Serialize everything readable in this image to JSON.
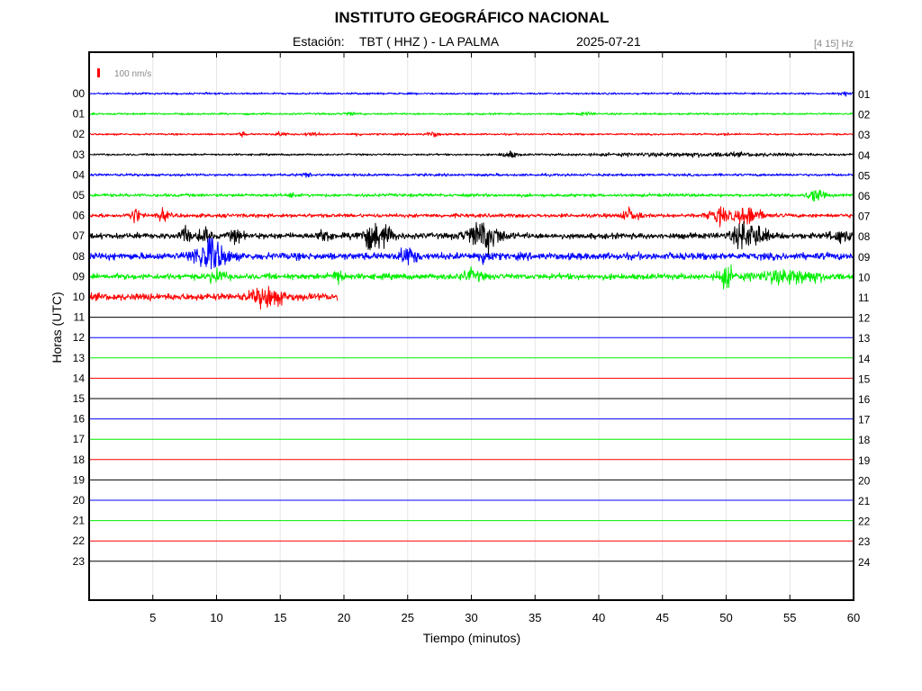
{
  "chart_data": {
    "type": "line",
    "title": "INSTITUTO GEOGRÁFICO NACIONAL",
    "station_label": "Estación:",
    "station": "TBT ( HHZ ) - LA PALMA",
    "date": "2025-07-21",
    "filter": "[4 15] Hz",
    "scale_label": "100 nm/s",
    "xlabel": "Tiempo (minutos)",
    "ylabel": "Horas (UTC)",
    "xlim": [
      0,
      60
    ],
    "x_ticks": [
      "5",
      "10",
      "15",
      "20",
      "25",
      "30",
      "35",
      "40",
      "45",
      "50",
      "55",
      "60"
    ],
    "y_ticks_left": [
      "00",
      "01",
      "02",
      "03",
      "04",
      "05",
      "06",
      "07",
      "08",
      "09",
      "10",
      "11",
      "12",
      "13",
      "14",
      "15",
      "16",
      "17",
      "18",
      "19",
      "20",
      "21",
      "22",
      "23"
    ],
    "y_ticks_right": [
      "01",
      "02",
      "03",
      "04",
      "05",
      "06",
      "07",
      "08",
      "09",
      "10",
      "11",
      "12",
      "13",
      "14",
      "15",
      "16",
      "17",
      "18",
      "19",
      "20",
      "21",
      "22",
      "23",
      "24"
    ],
    "grid": "vertical",
    "series": [
      {
        "hour": "00",
        "color": "#0000ff",
        "noise": 1.5,
        "end_minute": 60,
        "events": [
          [
            59.2,
            3,
            0.5
          ]
        ]
      },
      {
        "hour": "01",
        "color": "#00ee00",
        "noise": 1.5,
        "end_minute": 60,
        "events": [
          [
            20.5,
            2,
            0.5
          ],
          [
            39,
            2,
            0.6
          ]
        ]
      },
      {
        "hour": "02",
        "color": "#ff0000",
        "noise": 1.4,
        "end_minute": 60,
        "events": [
          [
            12,
            3,
            0.3
          ],
          [
            15,
            3,
            0.5
          ],
          [
            17.5,
            3,
            0.6
          ],
          [
            21,
            3,
            0.3
          ],
          [
            27,
            4,
            0.5
          ],
          [
            50,
            2,
            0.3
          ]
        ]
      },
      {
        "hour": "03",
        "color": "#000000",
        "noise": 1.5,
        "end_minute": 60,
        "events": [
          [
            33,
            5,
            0.6
          ],
          [
            48,
            2.5,
            8
          ]
        ]
      },
      {
        "hour": "04",
        "color": "#0000ff",
        "noise": 2,
        "end_minute": 60,
        "events": [
          [
            17,
            2,
            0.5
          ]
        ]
      },
      {
        "hour": "05",
        "color": "#00ee00",
        "noise": 2.5,
        "end_minute": 60,
        "events": [
          [
            16,
            3,
            0.3
          ],
          [
            57,
            9,
            0.6
          ]
        ]
      },
      {
        "hour": "06",
        "color": "#ff0000",
        "noise": 3,
        "end_minute": 60,
        "events": [
          [
            3.6,
            12,
            0.4
          ],
          [
            5.8,
            9,
            0.4
          ],
          [
            42.5,
            10,
            0.6
          ],
          [
            49.5,
            12,
            0.8
          ],
          [
            51.8,
            14,
            1
          ]
        ]
      },
      {
        "hour": "07",
        "color": "#000000",
        "noise": 4.5,
        "end_minute": 60,
        "events": [
          [
            7.5,
            13,
            0.4
          ],
          [
            9,
            13,
            0.4
          ],
          [
            11.5,
            9,
            0.5
          ],
          [
            18.5,
            10,
            0.5
          ],
          [
            22.5,
            20,
            1.2
          ],
          [
            31,
            22,
            1.3
          ],
          [
            51.8,
            22,
            1.2
          ],
          [
            59,
            8,
            0.8
          ]
        ]
      },
      {
        "hour": "08",
        "color": "#0000ff",
        "noise": 5.5,
        "end_minute": 60,
        "events": [
          [
            9.5,
            26,
            1.2
          ],
          [
            25,
            12,
            0.7
          ],
          [
            31,
            10,
            0.5
          ]
        ]
      },
      {
        "hour": "09",
        "color": "#00ee00",
        "noise": 4.5,
        "end_minute": 60,
        "events": [
          [
            10,
            10,
            0.6
          ],
          [
            19.5,
            9,
            0.5
          ],
          [
            30,
            8,
            0.8
          ],
          [
            50,
            15,
            0.6
          ],
          [
            55,
            10,
            2.5
          ]
        ]
      },
      {
        "hour": "10",
        "color": "#ff0000",
        "noise": 5.5,
        "end_minute": 19.5,
        "events": [
          [
            14,
            14,
            1.2
          ]
        ]
      },
      {
        "hour": "11",
        "color": "#000000",
        "noise": 0,
        "end_minute": 60,
        "events": []
      },
      {
        "hour": "12",
        "color": "#0000ff",
        "noise": 0,
        "end_minute": 60,
        "events": []
      },
      {
        "hour": "13",
        "color": "#00ee00",
        "noise": 0,
        "end_minute": 60,
        "events": []
      },
      {
        "hour": "14",
        "color": "#ff0000",
        "noise": 0,
        "end_minute": 60,
        "events": []
      },
      {
        "hour": "15",
        "color": "#000000",
        "noise": 0,
        "end_minute": 60,
        "events": []
      },
      {
        "hour": "16",
        "color": "#0000ff",
        "noise": 0,
        "end_minute": 60,
        "events": []
      },
      {
        "hour": "17",
        "color": "#00ee00",
        "noise": 0,
        "end_minute": 60,
        "events": []
      },
      {
        "hour": "18",
        "color": "#ff0000",
        "noise": 0,
        "end_minute": 60,
        "events": []
      },
      {
        "hour": "19",
        "color": "#000000",
        "noise": 0,
        "end_minute": 60,
        "events": []
      },
      {
        "hour": "20",
        "color": "#0000ff",
        "noise": 0,
        "end_minute": 60,
        "events": []
      },
      {
        "hour": "21",
        "color": "#00ee00",
        "noise": 0,
        "end_minute": 60,
        "events": []
      },
      {
        "hour": "22",
        "color": "#ff0000",
        "noise": 0,
        "end_minute": 60,
        "events": []
      },
      {
        "hour": "23",
        "color": "#000000",
        "noise": 0,
        "end_minute": 60,
        "events": []
      }
    ]
  }
}
